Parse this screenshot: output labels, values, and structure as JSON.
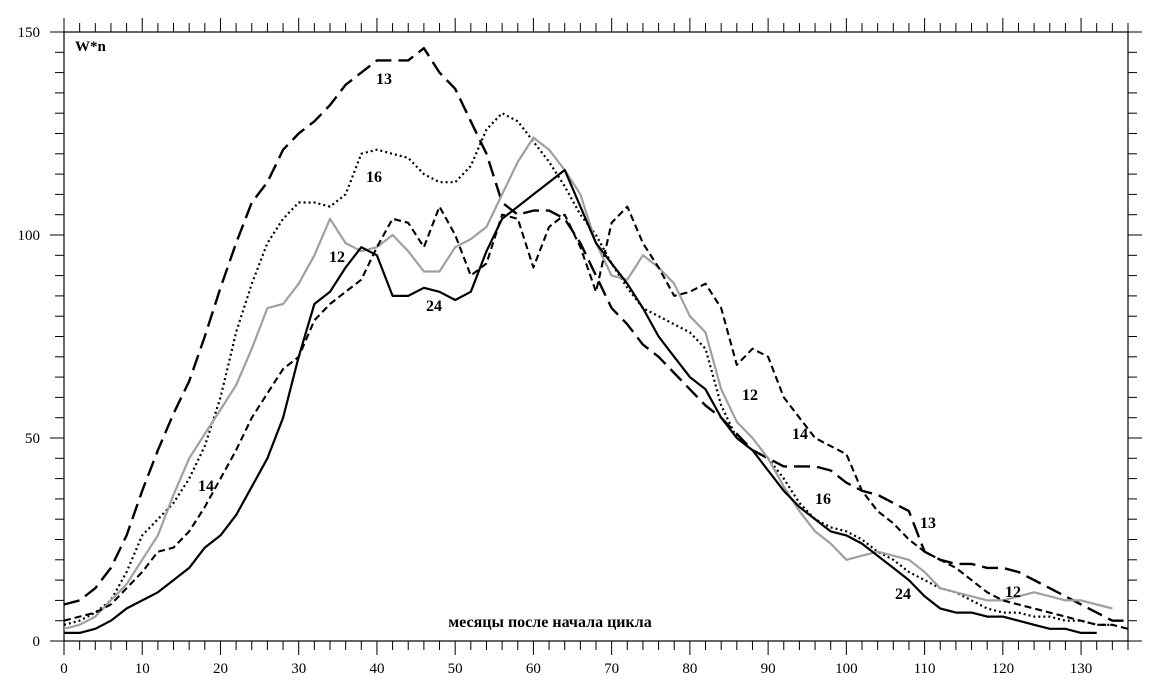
{
  "chart_data": {
    "type": "line",
    "title": "",
    "ylabel": "W*n",
    "xlabel": "месяцы после начала цикла",
    "xlim": [
      0,
      136
    ],
    "ylim": [
      0,
      150
    ],
    "xticks": [
      0,
      10,
      20,
      30,
      40,
      50,
      60,
      70,
      80,
      90,
      100,
      110,
      120,
      130
    ],
    "yticks": [
      0,
      50,
      100,
      150
    ],
    "grid": false,
    "legend": "none",
    "series": [
      {
        "name": "13",
        "style": "long-dash",
        "color": "#000000",
        "x": [
          0,
          2,
          4,
          6,
          8,
          10,
          12,
          14,
          16,
          18,
          20,
          22,
          24,
          26,
          28,
          30,
          32,
          34,
          36,
          38,
          40,
          42,
          44,
          46,
          48,
          50,
          52,
          54,
          56,
          58,
          60,
          62,
          64,
          66,
          68,
          70,
          72,
          74,
          76,
          78,
          80,
          82,
          84,
          86,
          88,
          90,
          92,
          94,
          96,
          98,
          100,
          102,
          104,
          106,
          108,
          110,
          112,
          114,
          116,
          118,
          120,
          122,
          124,
          126,
          128,
          130,
          132,
          134,
          136
        ],
        "y": [
          9,
          10,
          13,
          18,
          26,
          37,
          47,
          56,
          64,
          75,
          87,
          98,
          108,
          113,
          121,
          125,
          128,
          132,
          137,
          140,
          143,
          143,
          143,
          146,
          140,
          136,
          128,
          120,
          108,
          105,
          106,
          106,
          104,
          98,
          90,
          82,
          78,
          73,
          70,
          66,
          62,
          58,
          55,
          51,
          47,
          45,
          43,
          43,
          43,
          42,
          39,
          37,
          36,
          34,
          32,
          22,
          20,
          19,
          19,
          18,
          18,
          17,
          15,
          13,
          11,
          9,
          7,
          5,
          5
        ]
      },
      {
        "name": "16",
        "style": "dotted",
        "color": "#000000",
        "x": [
          0,
          2,
          4,
          6,
          8,
          10,
          12,
          14,
          16,
          18,
          20,
          22,
          24,
          26,
          28,
          30,
          32,
          34,
          36,
          38,
          40,
          42,
          44,
          46,
          48,
          50,
          52,
          54,
          56,
          58,
          60,
          62,
          64,
          66,
          68,
          70,
          72,
          74,
          76,
          78,
          80,
          82,
          84,
          86,
          88,
          90,
          92,
          94,
          96,
          98,
          100,
          102,
          104,
          106,
          108,
          110,
          112,
          114,
          116,
          118,
          120,
          122,
          124,
          126,
          128,
          130,
          132,
          134
        ],
        "y": [
          4,
          5,
          7,
          10,
          17,
          26,
          30,
          34,
          40,
          48,
          60,
          76,
          88,
          98,
          104,
          108,
          108,
          107,
          110,
          120,
          121,
          120,
          119,
          115,
          113,
          113,
          117,
          126,
          130,
          128,
          123,
          118,
          112,
          105,
          100,
          93,
          87,
          82,
          80,
          78,
          76,
          72,
          58,
          50,
          47,
          45,
          40,
          34,
          30,
          28,
          27,
          25,
          22,
          20,
          17,
          15,
          13,
          12,
          10,
          8,
          7,
          7,
          6,
          6,
          5,
          5,
          4,
          4
        ]
      },
      {
        "name": "12",
        "style": "solid",
        "color": "#a0a0a0",
        "x": [
          0,
          2,
          4,
          6,
          8,
          10,
          12,
          14,
          16,
          18,
          20,
          22,
          24,
          26,
          28,
          30,
          32,
          34,
          36,
          38,
          40,
          42,
          44,
          46,
          48,
          50,
          52,
          54,
          56,
          58,
          60,
          62,
          64,
          66,
          68,
          70,
          72,
          74,
          76,
          78,
          80,
          82,
          84,
          86,
          88,
          90,
          92,
          94,
          96,
          98,
          100,
          102,
          104,
          106,
          108,
          110,
          112,
          114,
          116,
          118,
          120,
          122,
          124,
          126,
          128,
          130,
          132,
          134
        ],
        "y": [
          3,
          4,
          6,
          10,
          14,
          20,
          26,
          36,
          45,
          51,
          57,
          63,
          72,
          82,
          83,
          88,
          95,
          104,
          98,
          96,
          97,
          100,
          96,
          91,
          91,
          97,
          99,
          102,
          110,
          118,
          124,
          121,
          116,
          110,
          98,
          90,
          89,
          95,
          92,
          88,
          80,
          76,
          62,
          54,
          50,
          45,
          38,
          32,
          27,
          24,
          20,
          21,
          22,
          21,
          20,
          17,
          13,
          12,
          11,
          10,
          10,
          11,
          12,
          11,
          10,
          10,
          9,
          8
        ]
      },
      {
        "name": "14",
        "style": "short-dash",
        "color": "#000000",
        "x": [
          0,
          2,
          4,
          6,
          8,
          10,
          12,
          14,
          16,
          18,
          20,
          22,
          24,
          26,
          28,
          30,
          32,
          34,
          36,
          38,
          40,
          42,
          44,
          46,
          48,
          50,
          52,
          54,
          56,
          58,
          60,
          62,
          64,
          66,
          68,
          70,
          72,
          74,
          76,
          78,
          80,
          82,
          84,
          86,
          88,
          90,
          92,
          94,
          96,
          98,
          100,
          102,
          104,
          106,
          108,
          110,
          112,
          114,
          116,
          118,
          120,
          122,
          124,
          126,
          128,
          130,
          132,
          134,
          136
        ],
        "y": [
          5,
          6,
          7,
          9,
          13,
          17,
          22,
          23,
          27,
          33,
          40,
          47,
          55,
          61,
          67,
          70,
          79,
          83,
          86,
          89,
          97,
          104,
          103,
          97,
          107,
          100,
          90,
          93,
          105,
          104,
          92,
          102,
          105,
          97,
          86,
          103,
          107,
          98,
          92,
          85,
          86,
          88,
          82,
          68,
          72,
          70,
          60,
          55,
          50,
          48,
          46,
          37,
          32,
          29,
          25,
          22,
          20,
          18,
          15,
          12,
          10,
          9,
          8,
          7,
          6,
          5,
          4,
          4,
          3
        ]
      },
      {
        "name": "24",
        "style": "solid",
        "color": "#000000",
        "x": [
          0,
          2,
          4,
          6,
          8,
          10,
          12,
          14,
          16,
          18,
          20,
          22,
          24,
          26,
          28,
          30,
          32,
          34,
          36,
          38,
          40,
          42,
          44,
          46,
          48,
          50,
          52,
          54,
          56,
          58,
          60,
          62,
          64,
          66,
          68,
          70,
          72,
          74,
          76,
          78,
          80,
          82,
          84,
          86,
          88,
          90,
          92,
          94,
          96,
          98,
          100,
          102,
          104,
          106,
          108,
          110,
          112,
          114,
          116,
          118,
          120,
          122,
          124,
          126,
          128,
          130,
          132
        ],
        "y": [
          2,
          2,
          3,
          5,
          8,
          10,
          12,
          15,
          18,
          23,
          26,
          31,
          38,
          45,
          55,
          70,
          83,
          86,
          92,
          97,
          95,
          85,
          85,
          87,
          86,
          84,
          86,
          96,
          104,
          107,
          110,
          113,
          116,
          107,
          98,
          93,
          88,
          82,
          75,
          70,
          65,
          62,
          55,
          50,
          47,
          42,
          37,
          33,
          30,
          27,
          26,
          24,
          21,
          18,
          15,
          11,
          8,
          7,
          7,
          6,
          6,
          5,
          4,
          3,
          3,
          2,
          2
        ]
      }
    ],
    "annotations": [
      {
        "text": "13",
        "x": 82,
        "y": 140
      },
      {
        "text": "16",
        "x": 99,
        "y": 115
      },
      {
        "text": "12",
        "x": 73,
        "y": 95
      },
      {
        "text": "24",
        "x": 99,
        "y": 83
      },
      {
        "text": "14",
        "x": 40,
        "y": 37
      },
      {
        "text": "12",
        "x": 114,
        "y": 60
      },
      {
        "text": "14",
        "x": 120,
        "y": 50
      },
      {
        "text": "16",
        "x": 125,
        "y": 34
      },
      {
        "text": "13",
        "x": 138,
        "y": 28
      },
      {
        "text": "24",
        "x": 121,
        "y": 11
      },
      {
        "text": "12",
        "x": 126,
        "y": 12
      }
    ]
  }
}
